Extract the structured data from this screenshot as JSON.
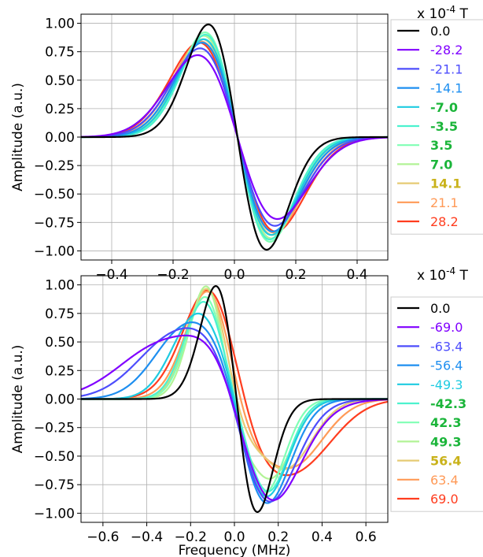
{
  "chart_data": [
    {
      "type": "line",
      "xlabel": "",
      "ylabel": "Amplitude (a.u.)",
      "xlim": [
        -0.5,
        0.5
      ],
      "ylim": [
        -1.08,
        1.08
      ],
      "xticks": [
        -0.4,
        -0.2,
        0.0,
        0.2,
        0.4
      ],
      "xtick_labels": [
        "−0.4",
        "−0.2",
        "0.0",
        "0.2",
        "0.4"
      ],
      "yticks": [
        1.0,
        0.75,
        0.5,
        0.25,
        0.0,
        -0.25,
        -0.5,
        -0.75,
        -1.0
      ],
      "ytick_labels": [
        "1.00",
        "0.75",
        "0.50",
        "0.25",
        "0.00",
        "−0.25",
        "−0.50",
        "−0.75",
        "−1.00"
      ],
      "grid": true,
      "legend_title": "x 10",
      "legend_title_exp": "-4",
      "legend_title_unit": " T",
      "legend_position": "right",
      "series": [
        {
          "name": "0.0",
          "color": "#000000",
          "label_color": "#000000",
          "bold": false,
          "w": 0.095,
          "m": 0.99
        },
        {
          "name": "-28.2",
          "color": "#8000ff",
          "label_color": "#8000ff",
          "bold": false,
          "w": 0.13,
          "m": 0.72
        },
        {
          "name": "-21.1",
          "color": "#4d4dfc",
          "label_color": "#4d4dfc",
          "bold": false,
          "w": 0.122,
          "m": 0.78
        },
        {
          "name": "-14.1",
          "color": "#1e8ff0",
          "label_color": "#1e8ff0",
          "bold": false,
          "w": 0.115,
          "m": 0.83
        },
        {
          "name": "-7.0",
          "color": "#1ecbe1",
          "label_color": "#1bb53a",
          "bold": true,
          "w": 0.11,
          "m": 0.86
        },
        {
          "name": "-3.5",
          "color": "#4cf2ce",
          "label_color": "#1bb53a",
          "bold": true,
          "w": 0.105,
          "m": 0.9
        },
        {
          "name": "3.5",
          "color": "#80ffb4",
          "label_color": "#1bb53a",
          "bold": true,
          "w": 0.106,
          "m": 0.92
        },
        {
          "name": "7.0",
          "color": "#b2f396",
          "label_color": "#1bb53a",
          "bold": true,
          "w": 0.11,
          "m": 0.89
        },
        {
          "name": "14.1",
          "color": "#e6cb74",
          "label_color": "#c9b21a",
          "bold": true,
          "w": 0.114,
          "m": 0.86
        },
        {
          "name": "21.1",
          "color": "#ff9a57",
          "label_color": "#ff9a57",
          "bold": false,
          "w": 0.119,
          "m": 0.84
        },
        {
          "name": "28.2",
          "color": "#ff3d1f",
          "label_color": "#ff3d1f",
          "bold": false,
          "w": 0.125,
          "m": 0.83
        }
      ]
    },
    {
      "type": "line",
      "xlabel": "Frequency (MHz)",
      "ylabel": "Amplitude (a.u.)",
      "xlim": [
        -0.7,
        0.7
      ],
      "ylim": [
        -1.08,
        1.08
      ],
      "xticks": [
        -0.6,
        -0.4,
        -0.2,
        0.0,
        0.2,
        0.4,
        0.6
      ],
      "xtick_labels": [
        "−0.6",
        "−0.4",
        "−0.2",
        "0.0",
        "0.2",
        "0.4",
        "0.6"
      ],
      "yticks": [
        1.0,
        0.75,
        0.5,
        0.25,
        0.0,
        -0.25,
        -0.5,
        -0.75,
        -1.0
      ],
      "ytick_labels": [
        "1.00",
        "0.75",
        "0.50",
        "0.25",
        "0.00",
        "−0.25",
        "−0.50",
        "−0.75",
        "−1.00"
      ],
      "grid": true,
      "legend_title": "x 10",
      "legend_title_exp": "-4",
      "legend_title_unit": " T",
      "legend_position": "right",
      "series": [
        {
          "name": "0.0",
          "color": "#000000",
          "label_color": "#000000",
          "bold": false,
          "kind": "single",
          "w": 0.095,
          "m": 0.99
        },
        {
          "name": "-69.0",
          "color": "#8000ff",
          "label_color": "#8000ff",
          "bold": false,
          "kind": "split",
          "s": 0.22,
          "p1": [
            -0.36,
            0.44
          ],
          "n1": [
            0.1,
            -0.27
          ],
          "p2": [
            -0.1,
            0.1
          ],
          "n2": [
            0.2,
            -0.5
          ]
        },
        {
          "name": "-63.4",
          "color": "#4d4dfc",
          "label_color": "#4d4dfc",
          "bold": false,
          "kind": "split",
          "s": 0.19,
          "p1": [
            -0.31,
            0.48
          ],
          "n1": [
            0.08,
            -0.18
          ],
          "p2": [
            -0.09,
            0.08
          ],
          "n2": [
            0.19,
            -0.51
          ]
        },
        {
          "name": "-56.4",
          "color": "#1e8ff0",
          "label_color": "#1e8ff0",
          "bold": false,
          "kind": "split",
          "s": 0.15,
          "p1": [
            -0.26,
            0.52
          ],
          "n1": [
            0.06,
            -0.1
          ],
          "p2": [
            -0.07,
            0.05
          ],
          "n2": [
            0.18,
            -0.55
          ]
        },
        {
          "name": "-49.3",
          "color": "#1ecbe1",
          "label_color": "#1ecbe1",
          "bold": false,
          "kind": "split",
          "s": 0.12,
          "p1": [
            -0.21,
            0.56
          ],
          "n1": [
            0.04,
            -0.05
          ],
          "p2": [
            -0.05,
            0.03
          ],
          "n2": [
            0.18,
            -0.6
          ]
        },
        {
          "name": "-42.3",
          "color": "#4cf2ce",
          "label_color": "#1bb53a",
          "bold": true,
          "kind": "split",
          "s": 0.07,
          "p1": [
            -0.17,
            0.64
          ],
          "n1": [
            0.03,
            -0.02
          ],
          "p2": [
            -0.03,
            0.01
          ],
          "n2": [
            0.18,
            -0.66
          ]
        },
        {
          "name": "42.3",
          "color": "#80ffb4",
          "label_color": "#1bb53a",
          "bold": true,
          "kind": "split",
          "s": 0.07,
          "p1": [
            -0.16,
            0.68
          ],
          "n1": [
            0.03,
            -0.02
          ],
          "p2": [
            -0.03,
            0.01
          ],
          "n2": [
            0.17,
            -0.64
          ]
        },
        {
          "name": "49.3",
          "color": "#b2f396",
          "label_color": "#1bb53a",
          "bold": true,
          "kind": "split",
          "s": 0.07,
          "p1": [
            -0.15,
            0.72
          ],
          "n1": [
            0.03,
            -0.02
          ],
          "p2": [
            -0.03,
            0.01
          ],
          "n2": [
            0.19,
            -0.6
          ]
        },
        {
          "name": "56.4",
          "color": "#e6cb74",
          "label_color": "#c9b21a",
          "bold": true,
          "kind": "split",
          "s": 0.07,
          "p1": [
            -0.15,
            0.62
          ],
          "n1": [
            0.05,
            -0.03
          ],
          "p2": [
            -0.03,
            0.01
          ],
          "n2": [
            0.25,
            -0.57
          ]
        },
        {
          "name": "63.4",
          "color": "#ff9a57",
          "label_color": "#ff9a57",
          "bold": false,
          "kind": "split",
          "s": 0.07,
          "p1": [
            -0.15,
            0.58
          ],
          "n1": [
            0.08,
            -0.04
          ],
          "p2": [
            -0.03,
            0.01
          ],
          "n2": [
            0.29,
            -0.53
          ]
        },
        {
          "name": "69.0",
          "color": "#ff3d1f",
          "label_color": "#ff3d1f",
          "bold": false,
          "kind": "split",
          "s": 0.07,
          "p1": [
            -0.15,
            0.58
          ],
          "n1": [
            0.12,
            -0.05
          ],
          "p2": [
            -0.03,
            0.01
          ],
          "n2": [
            0.33,
            -0.5
          ]
        }
      ]
    }
  ]
}
